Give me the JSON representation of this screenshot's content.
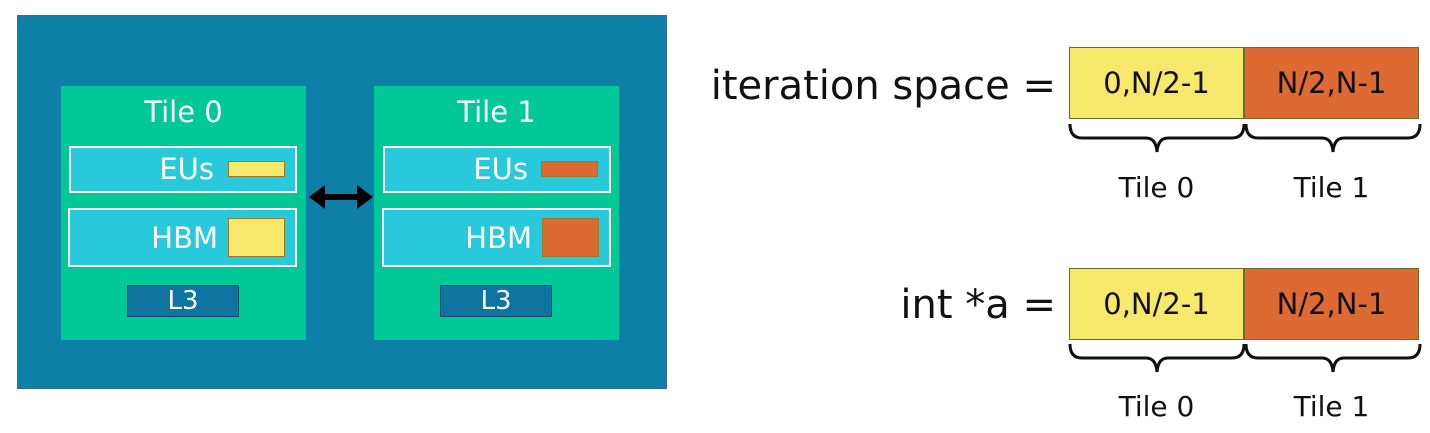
{
  "colors": {
    "package_bg": "#0e7fa6",
    "tile_bg": "#00c896",
    "bar_bg": "#27c9db",
    "l3_bg": "#0f74a0",
    "tile0_color": "#f6e86a",
    "tile1_color": "#dc6a32"
  },
  "diagram": {
    "tiles": [
      {
        "title": "Tile 0",
        "eus_label": "EUs",
        "hbm_label": "HBM",
        "l3_label": "L3"
      },
      {
        "title": "Tile 1",
        "eus_label": "EUs",
        "hbm_label": "HBM",
        "l3_label": "L3"
      }
    ],
    "link_icon": "double-arrow-icon"
  },
  "mappings": [
    {
      "label": "iteration space =",
      "cells": [
        "0,N/2-1",
        "N/2,N-1"
      ],
      "brace_labels": [
        "Tile 0",
        "Tile 1"
      ]
    },
    {
      "label": "int *a =",
      "cells": [
        "0,N/2-1",
        "N/2,N-1"
      ],
      "brace_labels": [
        "Tile 0",
        "Tile 1"
      ]
    }
  ]
}
